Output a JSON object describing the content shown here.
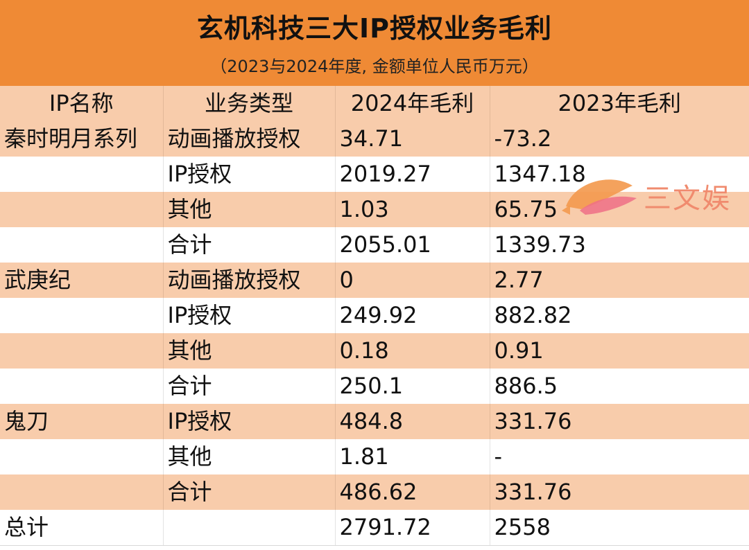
{
  "title": "玄机科技三大IP授权业务毛利",
  "subtitle": "（2023与2024年度, 金额单位人民币万元）",
  "columns": [
    "IP名称",
    "业务类型",
    "2024年毛利",
    "2023年毛利"
  ],
  "rows": [
    [
      "秦时明月系列",
      "动画播放授权",
      "34.71",
      "-73.2"
    ],
    [
      "",
      "IP授权",
      "2019.27",
      "1347.18"
    ],
    [
      "",
      "其他",
      "1.03",
      "65.75"
    ],
    [
      "",
      "合计",
      "2055.01",
      "1339.73"
    ],
    [
      "武庚纪",
      "动画播放授权",
      "0",
      "2.77"
    ],
    [
      "",
      "IP授权",
      "249.92",
      "882.82"
    ],
    [
      "",
      "其他",
      "0.18",
      "0.91"
    ],
    [
      "",
      "合计",
      "250.1",
      "886.5"
    ],
    [
      "鬼刀",
      "IP授权",
      "484.8",
      "331.76"
    ],
    [
      "",
      "其他",
      "1.81",
      "-"
    ],
    [
      "",
      "合计",
      "486.62",
      "331.76"
    ],
    [
      "总计",
      "",
      "2791.72",
      "2558"
    ]
  ],
  "watermark": {
    "text": "三文娱",
    "icon": "fish-logo-icon"
  },
  "colors": {
    "banner": "#ef8a35",
    "stripe": "#f8ccab",
    "watermark": "#f08b6e"
  }
}
